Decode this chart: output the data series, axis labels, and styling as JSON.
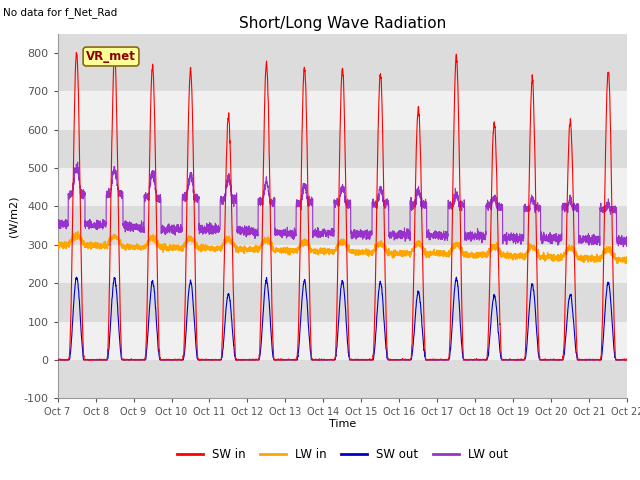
{
  "title": "Short/Long Wave Radiation",
  "no_data_text": "No data for f_Net_Rad",
  "vr_met_label": "VR_met",
  "ylabel": "(W/m2)",
  "xlabel": "Time",
  "ylim": [
    -100,
    850
  ],
  "yticks": [
    -100,
    0,
    100,
    200,
    300,
    400,
    500,
    600,
    700,
    800
  ],
  "x_tick_labels": [
    "Oct 7",
    "Oct 8",
    "Oct 9",
    "Oct 10",
    "Oct 11",
    "Oct 12",
    "Oct 13",
    "Oct 14",
    "Oct 15",
    "Oct 16",
    "Oct 17",
    "Oct 18",
    "Oct 19",
    "Oct 20",
    "Oct 21",
    "Oct 22"
  ],
  "colors": {
    "SW_in": "#FF0000",
    "LW_in": "#FFA500",
    "SW_out": "#0000CC",
    "LW_out": "#9932CC"
  },
  "legend_labels": [
    "SW in",
    "LW in",
    "SW out",
    "LW out"
  ],
  "band_colors": [
    "#DCDCDC",
    "#F0F0F0"
  ],
  "n_days": 15,
  "pts_per_day": 288
}
